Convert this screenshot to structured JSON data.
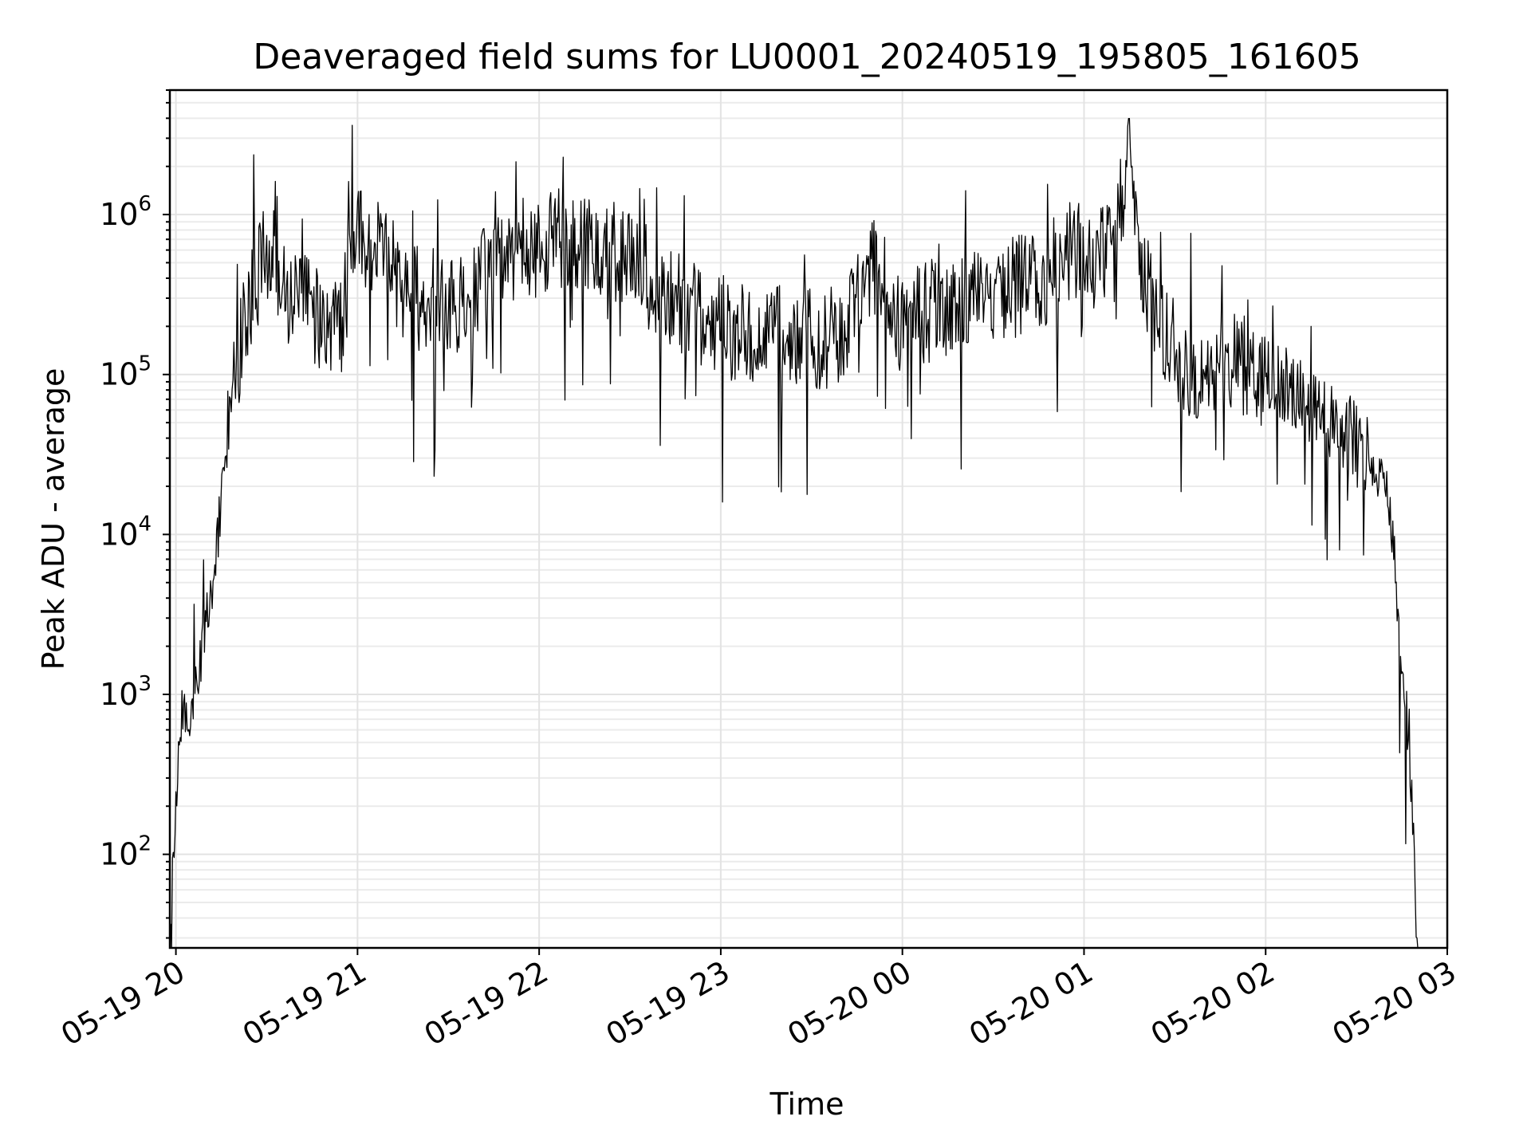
{
  "chart_data": {
    "type": "line",
    "title": "Deaveraged field sums for LU0001_20240519_195805_161605",
    "xlabel": "Time",
    "ylabel": "Peak ADU - average",
    "yscale": "log",
    "grid": "on (major and minor)",
    "xlim": [
      "05-19 19:58",
      "05-20 03:00"
    ],
    "ylim": [
      26,
      6000000
    ],
    "x_ticks": [
      "05-19 20",
      "05-19 21",
      "05-19 22",
      "05-19 23",
      "05-20 00",
      "05-20 01",
      "05-20 02",
      "05-20 03"
    ],
    "y_ticks": [
      {
        "base": "10",
        "exp": "2",
        "value": 100
      },
      {
        "base": "10",
        "exp": "3",
        "value": 1000
      },
      {
        "base": "10",
        "exp": "4",
        "value": 10000
      },
      {
        "base": "10",
        "exp": "5",
        "value": 100000
      },
      {
        "base": "10",
        "exp": "6",
        "value": 1000000
      }
    ],
    "series": [
      {
        "color": "#000000",
        "points": [
          [
            "05-19 19:58",
            30
          ],
          [
            "05-19 20:00",
            200
          ],
          [
            "05-19 20:02",
            800
          ],
          [
            "05-19 20:04",
            600
          ],
          [
            "05-19 20:06",
            1000
          ],
          [
            "05-19 20:08",
            1500
          ],
          [
            "05-19 20:10",
            3000
          ],
          [
            "05-19 20:12",
            5000
          ],
          [
            "05-19 20:14",
            10000
          ],
          [
            "05-19 20:16",
            30000
          ],
          [
            "05-19 20:18",
            70000
          ],
          [
            "05-19 20:20",
            120000
          ],
          [
            "05-19 20:22",
            180000
          ],
          [
            "05-19 20:24",
            280000
          ],
          [
            "05-19 20:26",
            380000
          ],
          [
            "05-19 20:28",
            450000
          ],
          [
            "05-19 20:30",
            500000
          ],
          [
            "05-19 20:32",
            600000
          ],
          [
            "05-19 20:34",
            450000
          ],
          [
            "05-19 20:36",
            400000
          ],
          [
            "05-19 20:40",
            300000
          ],
          [
            "05-19 20:45",
            250000
          ],
          [
            "05-19 20:50",
            200000
          ],
          [
            "05-19 20:55",
            220000
          ],
          [
            "05-19 21:00",
            900000
          ],
          [
            "05-19 21:05",
            600000
          ],
          [
            "05-19 21:10",
            500000
          ],
          [
            "05-19 21:15",
            350000
          ],
          [
            "05-19 21:20",
            300000
          ],
          [
            "05-19 21:30",
            250000
          ],
          [
            "05-19 21:40",
            400000
          ],
          [
            "05-19 21:50",
            600000
          ],
          [
            "05-19 22:00",
            650000
          ],
          [
            "05-19 22:10",
            700000
          ],
          [
            "05-19 22:20",
            650000
          ],
          [
            "05-19 22:30",
            500000
          ],
          [
            "05-19 22:40",
            350000
          ],
          [
            "05-19 22:50",
            250000
          ],
          [
            "05-19 23:00",
            200000
          ],
          [
            "05-19 23:10",
            180000
          ],
          [
            "05-19 23:20",
            170000
          ],
          [
            "05-19 23:30",
            160000
          ],
          [
            "05-19 23:40",
            180000
          ],
          [
            "05-19 23:50",
            500000
          ],
          [
            "05-20 00:00",
            200000
          ],
          [
            "05-20 00:10",
            250000
          ],
          [
            "05-20 00:20",
            300000
          ],
          [
            "05-20 00:30",
            320000
          ],
          [
            "05-20 00:40",
            380000
          ],
          [
            "05-20 00:50",
            450000
          ],
          [
            "05-20 01:00",
            700000
          ],
          [
            "05-20 01:10",
            600000
          ],
          [
            "05-20 01:15",
            2500000
          ],
          [
            "05-20 01:20",
            400000
          ],
          [
            "05-20 01:25",
            200000
          ],
          [
            "05-20 01:30",
            150000
          ],
          [
            "05-20 01:40",
            90000
          ],
          [
            "05-20 01:50",
            120000
          ],
          [
            "05-20 02:00",
            100000
          ],
          [
            "05-20 02:10",
            80000
          ],
          [
            "05-20 02:20",
            50000
          ],
          [
            "05-20 02:30",
            40000
          ],
          [
            "05-20 02:35",
            30000
          ],
          [
            "05-20 02:40",
            20000
          ],
          [
            "05-20 02:42",
            10000
          ],
          [
            "05-20 02:44",
            3000
          ],
          [
            "05-20 02:46",
            1000
          ],
          [
            "05-20 02:48",
            300
          ],
          [
            "05-20 02:50",
            30
          ]
        ]
      }
    ]
  }
}
